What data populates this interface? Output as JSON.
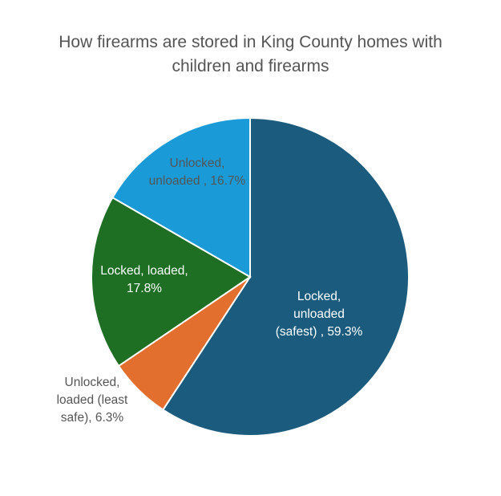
{
  "chart_data": {
    "type": "pie",
    "title": [
      "How firearms are stored in King County homes with",
      "children and firearms"
    ],
    "slices": [
      {
        "label_lines": [
          "Locked,",
          "unloaded",
          "(safest) , 59.3%"
        ],
        "value": 59.3,
        "color": "#1b5c7e",
        "label_color": "#ffffff"
      },
      {
        "label_lines": [
          "Unlocked,",
          "loaded (least",
          "safe), 6.3%"
        ],
        "value": 6.3,
        "color": "#e36f2f",
        "label_color": "#555555"
      },
      {
        "label_lines": [
          "Locked, loaded,",
          "17.8%"
        ],
        "value": 17.8,
        "color": "#1e6e24",
        "label_color": "#ffffff"
      },
      {
        "label_lines": [
          "Unlocked,",
          "unloaded , 16.7%"
        ],
        "value": 16.7,
        "color": "#1a9bd7",
        "label_color": "#555555"
      }
    ],
    "start_angle": "12 o'clock",
    "direction": "clockwise",
    "legend": "none"
  }
}
